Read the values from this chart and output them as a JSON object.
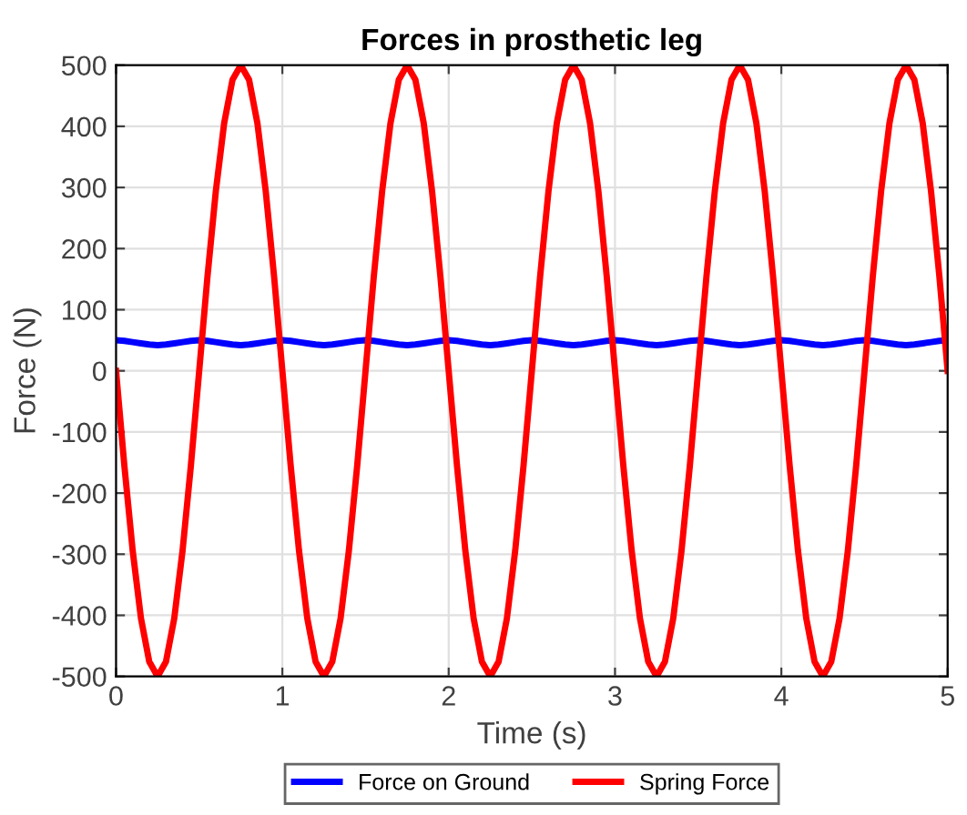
{
  "chart_data": {
    "type": "line",
    "title": "Forces in prosthetic leg",
    "xlabel": "Time (s)",
    "ylabel": "Force (N)",
    "x": [
      0,
      0.05,
      0.1,
      0.15,
      0.2,
      0.25,
      0.3,
      0.35,
      0.4,
      0.45,
      0.5,
      0.55,
      0.6,
      0.65,
      0.7,
      0.75,
      0.8,
      0.85,
      0.9,
      0.95,
      1,
      1.05,
      1.1,
      1.15,
      1.2,
      1.25,
      1.3,
      1.35,
      1.4,
      1.45,
      1.5,
      1.55,
      1.6,
      1.65,
      1.7,
      1.75,
      1.8,
      1.85,
      1.9,
      1.95,
      2,
      2.05,
      2.1,
      2.15,
      2.2,
      2.25,
      2.3,
      2.35,
      2.4,
      2.45,
      2.5,
      2.55,
      2.6,
      2.65,
      2.7,
      2.75,
      2.8,
      2.85,
      2.9,
      2.95,
      3,
      3.05,
      3.1,
      3.15,
      3.2,
      3.25,
      3.3,
      3.35,
      3.4,
      3.45,
      3.5,
      3.55,
      3.6,
      3.65,
      3.7,
      3.75,
      3.8,
      3.85,
      3.9,
      3.95,
      4,
      4.05,
      4.1,
      4.15,
      4.2,
      4.25,
      4.3,
      4.35,
      4.4,
      4.45,
      4.5,
      4.55,
      4.6,
      4.65,
      4.7,
      4.75,
      4.8,
      4.85,
      4.9,
      4.95,
      5
    ],
    "series": [
      {
        "name": "Force on Ground",
        "color": "#0000ff",
        "values": [
          50,
          49,
          47,
          45,
          43,
          42,
          43,
          45,
          47,
          49,
          50,
          49,
          47,
          45,
          43,
          42,
          43,
          45,
          47,
          49,
          50,
          49,
          47,
          45,
          43,
          42,
          43,
          45,
          47,
          49,
          50,
          49,
          47,
          45,
          43,
          42,
          43,
          45,
          47,
          49,
          50,
          49,
          47,
          45,
          43,
          42,
          43,
          45,
          47,
          49,
          50,
          49,
          47,
          45,
          43,
          42,
          43,
          45,
          47,
          49,
          50,
          49,
          47,
          45,
          43,
          42,
          43,
          45,
          47,
          49,
          50,
          49,
          47,
          45,
          43,
          42,
          43,
          45,
          47,
          49,
          50,
          49,
          47,
          45,
          43,
          42,
          43,
          45,
          47,
          49,
          50,
          49,
          47,
          45,
          43,
          42,
          43,
          45,
          47,
          49,
          50
        ]
      },
      {
        "name": "Spring Force",
        "color": "#ff0000",
        "values": [
          0,
          -155,
          -294,
          -405,
          -476,
          -500,
          -476,
          -405,
          -294,
          -155,
          0,
          155,
          294,
          405,
          476,
          500,
          476,
          405,
          294,
          155,
          0,
          -155,
          -294,
          -405,
          -476,
          -500,
          -476,
          -405,
          -294,
          -155,
          0,
          155,
          294,
          405,
          476,
          500,
          476,
          405,
          294,
          155,
          0,
          -155,
          -294,
          -405,
          -476,
          -500,
          -476,
          -405,
          -294,
          -155,
          0,
          155,
          294,
          405,
          476,
          500,
          476,
          405,
          294,
          155,
          0,
          -155,
          -294,
          -405,
          -476,
          -500,
          -476,
          -405,
          -294,
          -155,
          0,
          155,
          294,
          405,
          476,
          500,
          476,
          405,
          294,
          155,
          0,
          -155,
          -294,
          -405,
          -476,
          -500,
          -476,
          -405,
          -294,
          -155,
          0,
          155,
          294,
          405,
          476,
          500,
          476,
          405,
          294,
          155,
          0
        ]
      }
    ],
    "xlim": [
      0,
      5
    ],
    "xticks": [
      0,
      1,
      2,
      3,
      4,
      5
    ],
    "ylim": [
      -500,
      500
    ],
    "yticks": [
      -500,
      -400,
      -300,
      -200,
      -100,
      0,
      100,
      200,
      300,
      400,
      500
    ],
    "grid": true,
    "legend": "bottom",
    "line_style": "solid",
    "marker": "none"
  }
}
